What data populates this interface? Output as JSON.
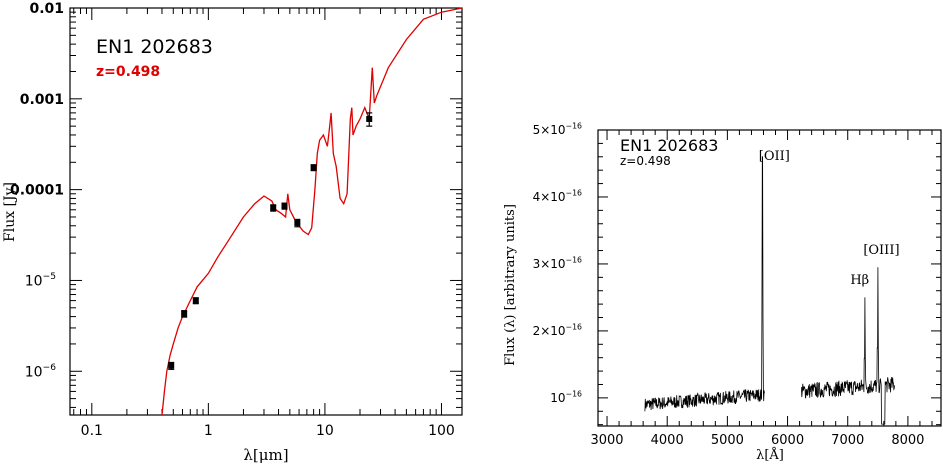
{
  "chart_data": [
    {
      "type": "line",
      "title": "EN1 202683",
      "subtitle": "z=0.498",
      "xlabel": "λ[μm]",
      "ylabel": "Flux [Jy]",
      "xscale": "log",
      "yscale": "log",
      "xlim": [
        0.065,
        150
      ],
      "ylim": [
        3.3e-07,
        0.01
      ],
      "x_ticks": [
        {
          "v": 0.1,
          "label": "0.1"
        },
        {
          "v": 1,
          "label": "1"
        },
        {
          "v": 10,
          "label": "10"
        },
        {
          "v": 100,
          "label": "100"
        }
      ],
      "y_ticks": [
        {
          "v": 1e-06,
          "base": "10",
          "exp": "−6"
        },
        {
          "v": 1e-05,
          "base": "10",
          "exp": "−5"
        },
        {
          "v": 0.0001,
          "label": "0.0001"
        },
        {
          "v": 0.001,
          "label": "0.001"
        },
        {
          "v": 0.01,
          "label": "0.01"
        }
      ],
      "model_color": "#e00000",
      "model": [
        [
          0.4,
          3.3e-07
        ],
        [
          0.42,
          6e-07
        ],
        [
          0.44,
          1e-06
        ],
        [
          0.47,
          1.5e-06
        ],
        [
          0.5,
          2e-06
        ],
        [
          0.55,
          3e-06
        ],
        [
          0.6,
          4e-06
        ],
        [
          0.7,
          6e-06
        ],
        [
          0.8,
          8.5e-06
        ],
        [
          1.0,
          1.2e-05
        ],
        [
          1.2,
          1.8e-05
        ],
        [
          1.5,
          2.8e-05
        ],
        [
          2.0,
          5e-05
        ],
        [
          2.5,
          7e-05
        ],
        [
          3.0,
          8.5e-05
        ],
        [
          3.5,
          7.5e-05
        ],
        [
          3.8,
          6e-05
        ],
        [
          4.2,
          5.5e-05
        ],
        [
          4.6,
          5e-05
        ],
        [
          4.8,
          9e-05
        ],
        [
          5.0,
          6e-05
        ],
        [
          5.6,
          4.5e-05
        ],
        [
          6.5,
          3.5e-05
        ],
        [
          7.2,
          3.2e-05
        ],
        [
          7.7,
          3.8e-05
        ],
        [
          8.2,
          0.0001
        ],
        [
          8.6,
          0.00025
        ],
        [
          9.0,
          0.00035
        ],
        [
          9.7,
          0.0004
        ],
        [
          10.5,
          0.0003
        ],
        [
          11.0,
          0.0005
        ],
        [
          11.3,
          0.0007
        ],
        [
          11.8,
          0.00025
        ],
        [
          12.5,
          0.00018
        ],
        [
          13.5,
          8e-05
        ],
        [
          14.5,
          7e-05
        ],
        [
          15.5,
          9e-05
        ],
        [
          16.5,
          0.0006
        ],
        [
          17.0,
          0.0008
        ],
        [
          17.4,
          0.0004
        ],
        [
          18.5,
          0.0005
        ],
        [
          20.0,
          0.0006
        ],
        [
          22.0,
          0.0008
        ],
        [
          24.0,
          0.0006
        ],
        [
          25.5,
          0.0022
        ],
        [
          26.5,
          0.0009
        ],
        [
          28.0,
          0.0011
        ],
        [
          35.0,
          0.0022
        ],
        [
          50.0,
          0.0045
        ],
        [
          70.0,
          0.0075
        ],
        [
          100.0,
          0.009
        ],
        [
          150.0,
          0.01
        ]
      ],
      "photometry": [
        {
          "x": 0.48,
          "y": 1.15e-06,
          "yerr": 1e-07
        },
        {
          "x": 0.62,
          "y": 4.3e-06,
          "yerr": 3.5e-07
        },
        {
          "x": 0.78,
          "y": 6e-06,
          "yerr": 4.5e-07
        },
        {
          "x": 3.6,
          "y": 6.3e-05,
          "yerr": 5e-06
        },
        {
          "x": 4.5,
          "y": 6.6e-05,
          "yerr": 5e-06
        },
        {
          "x": 5.8,
          "y": 4.3e-05,
          "yerr": 4e-06
        },
        {
          "x": 8.0,
          "y": 0.000175,
          "yerr": 1.3e-05
        },
        {
          "x": 24.0,
          "y": 0.0006,
          "yerr": 0.0001
        }
      ]
    },
    {
      "type": "line",
      "title": "EN1 202683",
      "subtitle": "z=0.498",
      "xlabel": "λ[Å]",
      "ylabel": "Flux (λ) [arbitrary units]",
      "xlim": [
        2850,
        8550
      ],
      "ylim": [
        5.8e-17,
        5e-16
      ],
      "x_ticks": [
        3000,
        4000,
        5000,
        6000,
        7000,
        8000
      ],
      "y_ticks": [
        {
          "v": 1e-16,
          "label": "10",
          "exp": "−16"
        },
        {
          "v": 2e-16,
          "label": "2×10",
          "exp": "−16"
        },
        {
          "v": 3e-16,
          "label": "3×10",
          "exp": "−16"
        },
        {
          "v": 4e-16,
          "label": "4×10",
          "exp": "−16"
        },
        {
          "v": 5e-16,
          "label": "5×10",
          "exp": "−16"
        }
      ],
      "lines": [
        {
          "label": "[OII]",
          "x": 5583,
          "peak": 4.6e-16
        },
        {
          "label": "Hβ",
          "x": 7284,
          "peak": 2.5e-16
        },
        {
          "label": "[OIII]",
          "x": 7500,
          "peak": 2.95e-16
        }
      ],
      "segments": [
        {
          "x0": 3630,
          "x1": 5620,
          "level_start": 9e-17,
          "level_end": 1.05e-16,
          "noise": 1e-17
        },
        {
          "x0": 6230,
          "x1": 7780,
          "level_start": 1.1e-16,
          "level_end": 1.2e-16,
          "noise": 1.2e-17
        }
      ]
    }
  ]
}
